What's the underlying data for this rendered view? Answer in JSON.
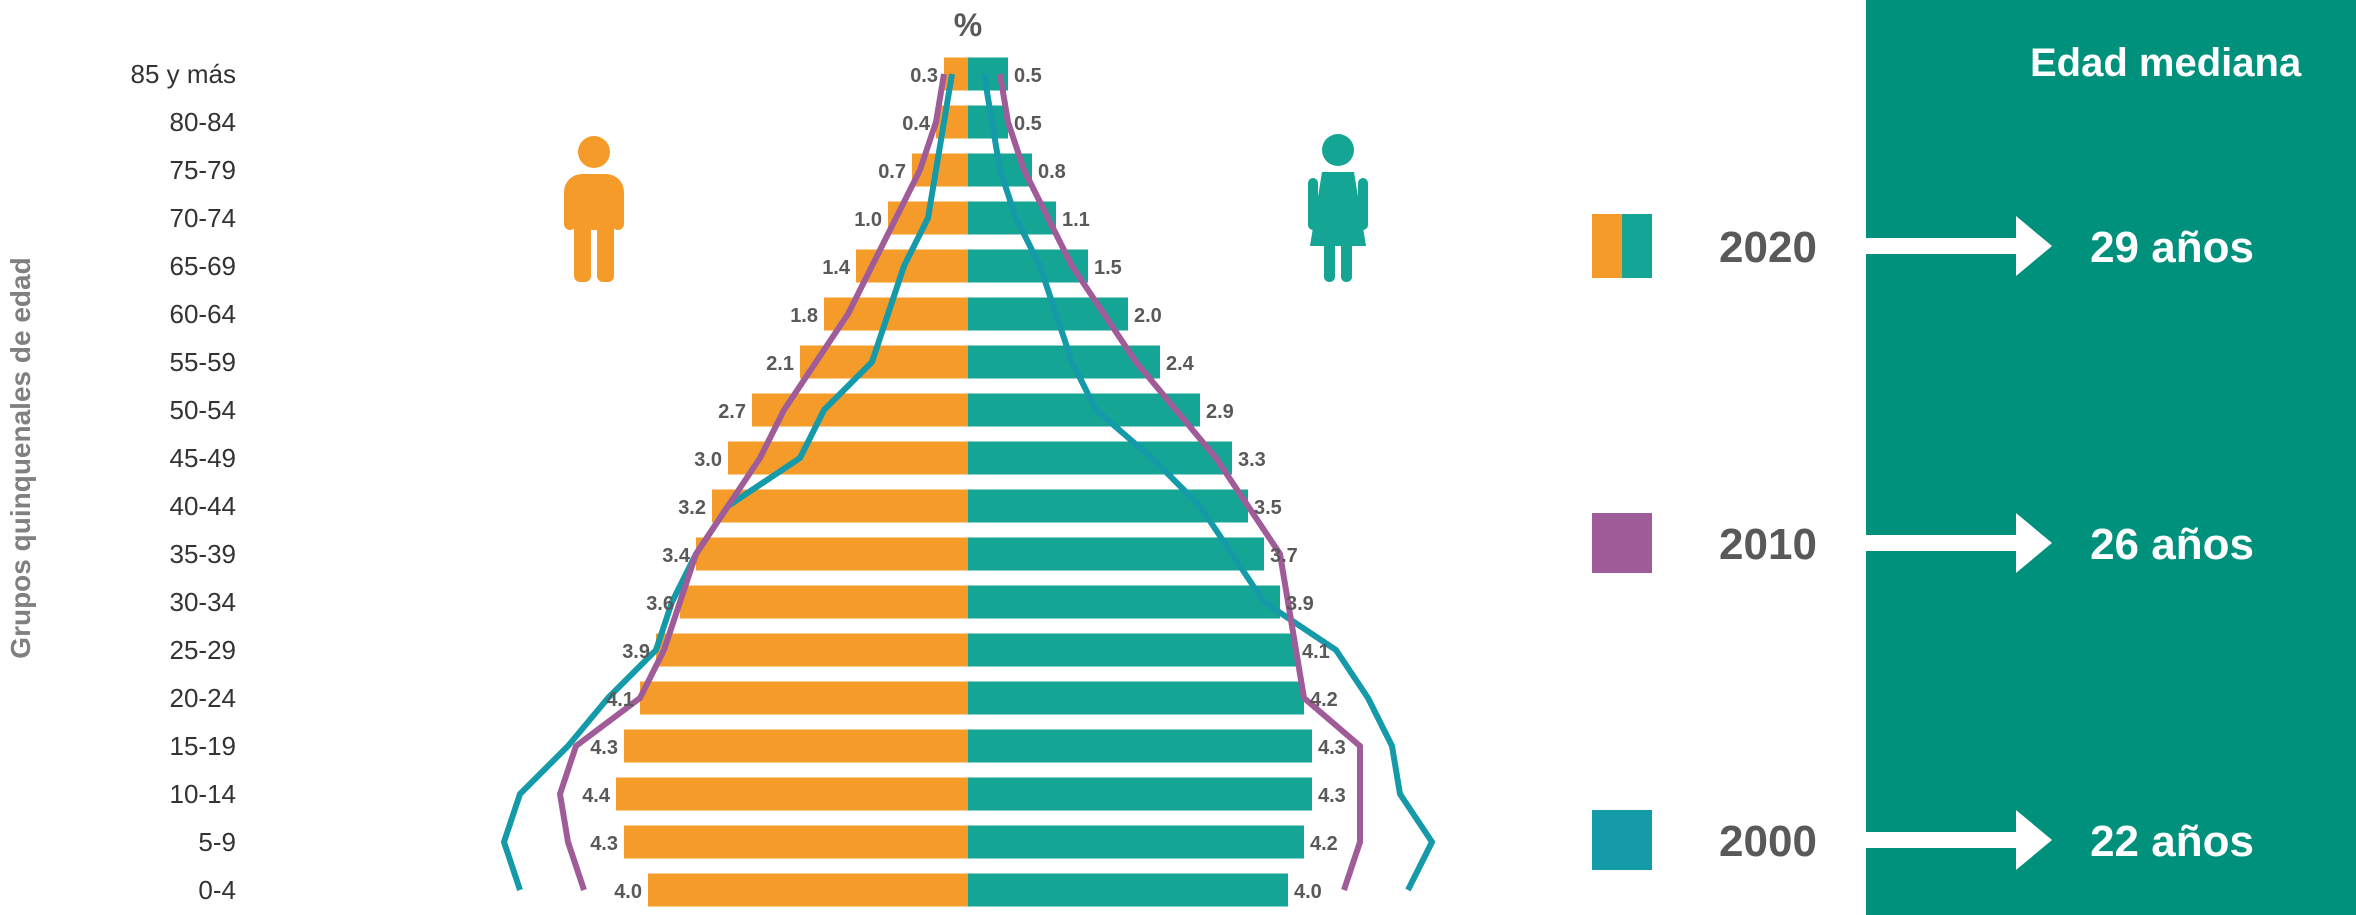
{
  "chart_data": {
    "type": "bar",
    "subtype": "population-pyramid",
    "unit": "%",
    "ylabel": "Grupos quinquenales de edad",
    "categories": [
      "0-4",
      "5-9",
      "10-14",
      "15-19",
      "20-24",
      "25-29",
      "30-34",
      "35-39",
      "40-44",
      "45-49",
      "50-54",
      "55-59",
      "60-64",
      "65-69",
      "70-74",
      "75-79",
      "80-84",
      "85 y más"
    ],
    "series": [
      {
        "name": "Hombres",
        "values": [
          4.0,
          4.3,
          4.4,
          4.3,
          4.1,
          3.9,
          3.6,
          3.4,
          3.2,
          3.0,
          2.7,
          2.1,
          1.8,
          1.4,
          1.0,
          0.7,
          0.4,
          0.3
        ],
        "labels": [
          "4.0",
          "4.3",
          "4.4",
          "4.3",
          "4.1",
          "3.9",
          "3.6",
          "3.4",
          "3.2",
          "3.0",
          "2.7",
          "2.1",
          "1.8",
          "1.4",
          "1.0",
          "0.7",
          "0.4",
          "0.3"
        ]
      },
      {
        "name": "Mujeres",
        "values": [
          4.0,
          4.2,
          4.3,
          4.3,
          4.2,
          4.1,
          3.9,
          3.7,
          3.5,
          3.3,
          2.9,
          2.4,
          2.0,
          1.5,
          1.1,
          0.8,
          0.5,
          0.5
        ],
        "labels": [
          "4.0",
          "4.2",
          "4.3",
          "4.3",
          "4.2",
          "4.1",
          "3.9",
          "3.7",
          "3.5",
          "3.3",
          "2.9",
          "2.4",
          "2.0",
          "1.5",
          "1.1",
          "0.8",
          "0.5",
          "0.5"
        ]
      }
    ],
    "outline_2010": {
      "men": [
        4.8,
        5.0,
        5.1,
        4.9,
        4.1,
        3.8,
        3.6,
        3.4,
        3.0,
        2.6,
        2.3,
        1.9,
        1.5,
        1.2,
        0.9,
        0.6,
        0.4,
        0.3
      ],
      "women": [
        4.7,
        4.9,
        4.9,
        4.9,
        4.2,
        4.1,
        4.0,
        3.9,
        3.5,
        3.1,
        2.6,
        2.1,
        1.7,
        1.3,
        1.0,
        0.7,
        0.5,
        0.4
      ]
    },
    "outline_2000": {
      "men": [
        5.6,
        5.8,
        5.6,
        5.0,
        4.5,
        3.9,
        3.7,
        3.4,
        3.0,
        2.1,
        1.8,
        1.2,
        1.0,
        0.8,
        0.5,
        0.4,
        0.3,
        0.2
      ],
      "women": [
        5.5,
        5.8,
        5.4,
        5.3,
        5.0,
        4.6,
        3.7,
        3.3,
        2.9,
        2.3,
        1.6,
        1.3,
        1.1,
        0.9,
        0.6,
        0.4,
        0.3,
        0.2
      ]
    },
    "xlim": [
      -6,
      6
    ],
    "legend": [
      {
        "year": "2020",
        "median": "29 años"
      },
      {
        "year": "2010",
        "median": "26 años"
      },
      {
        "year": "2000",
        "median": "22 años"
      }
    ],
    "panel_title": "Edad mediana"
  },
  "colors": {
    "men": "#F59B2A",
    "women": "#14A594",
    "outline_2010": "#A05C98",
    "outline_2000": "#149AA8",
    "panel": "#00917C",
    "text": "#595959"
  },
  "icons": {
    "men": "man-icon",
    "women": "woman-icon"
  }
}
